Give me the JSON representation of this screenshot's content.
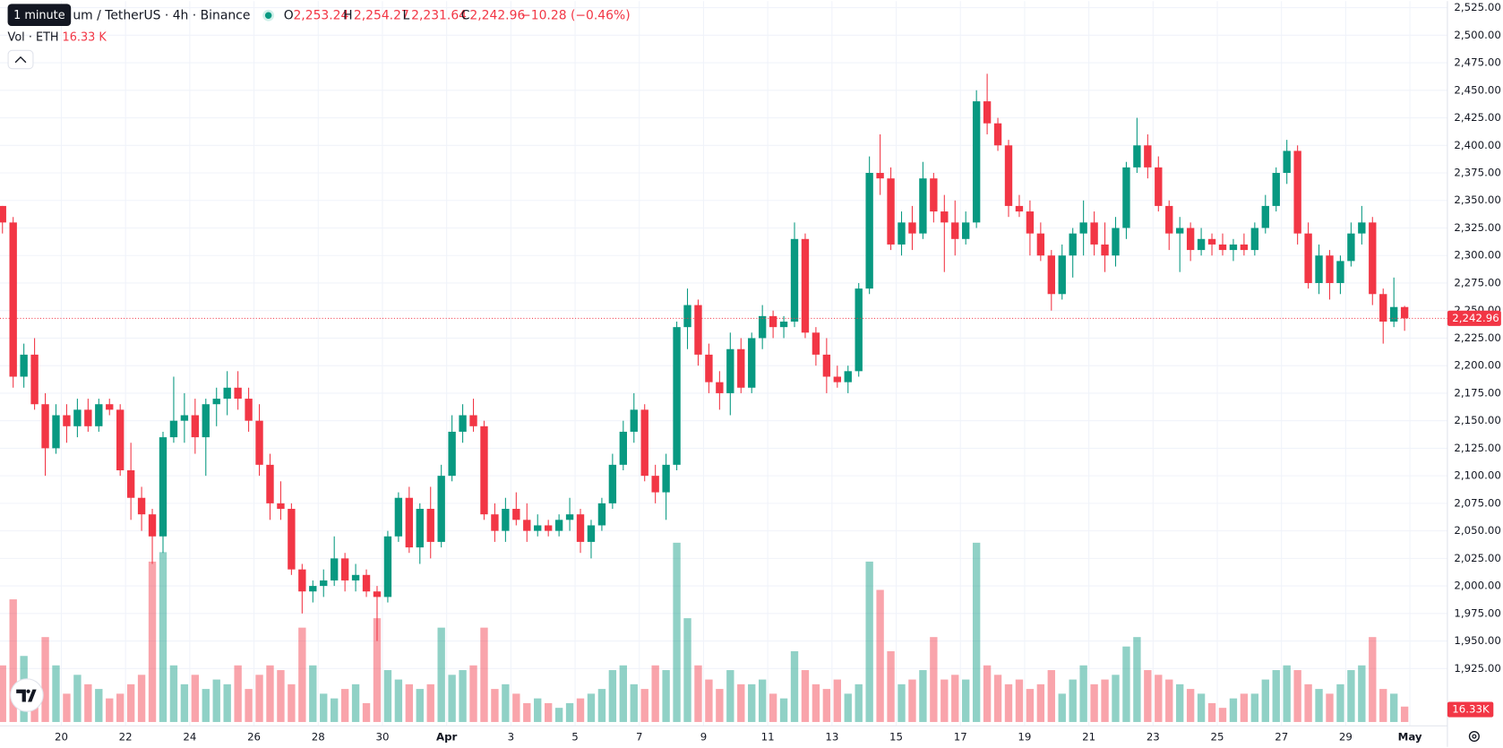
{
  "header": {
    "tooltip": "1 minute",
    "symbol": "um / TetherUS · 4h · Binance",
    "o": "O",
    "open": "2,253.24",
    "h": "H",
    "high": "2,254.27",
    "l": "L",
    "low": "2,231.64",
    "c": "C",
    "close": "2,242.96",
    "change": "−10.28 (−0.46%)",
    "vol_title": "Vol · ETH",
    "vol_value": "16.33 K"
  },
  "chart_data": {
    "type": "candlestick",
    "up_color": "#089981",
    "down_color": "#f23645",
    "grid": true,
    "open": [
      2345,
      2330,
      2190,
      2210,
      2165,
      2125,
      2155,
      2145,
      2160,
      2145,
      2165,
      2160,
      2105,
      2080,
      2065,
      2045,
      2135,
      2150,
      2155,
      2135,
      2165,
      2170,
      2180,
      2170,
      2150,
      2110,
      2075,
      2070,
      2015,
      1995,
      2000,
      2005,
      2025,
      2005,
      2010,
      1995,
      1990,
      2045,
      2080,
      2035,
      2070,
      2040,
      2100,
      2140,
      2155,
      2145,
      2065,
      2050,
      2070,
      2060,
      2050,
      2055,
      2050,
      2060,
      2065,
      2040,
      2055,
      2075,
      2110,
      2140,
      2160,
      2100,
      2085,
      2110,
      2235,
      2255,
      2210,
      2185,
      2175,
      2215,
      2180,
      2225,
      2245,
      2235,
      2240,
      2315,
      2230,
      2210,
      2190,
      2185,
      2195,
      2270,
      2375,
      2370,
      2310,
      2330,
      2320,
      2370,
      2340,
      2330,
      2315,
      2330,
      2440,
      2420,
      2400,
      2345,
      2340,
      2320,
      2300,
      2265,
      2300,
      2320,
      2330,
      2310,
      2300,
      2325,
      2380,
      2400,
      2380,
      2345,
      2320,
      2325,
      2305,
      2315,
      2310,
      2305,
      2310,
      2305,
      2325,
      2345,
      2375,
      2395,
      2320,
      2275,
      2300,
      2275,
      2295,
      2320,
      2330,
      2265,
      2240,
      2253.24
    ],
    "high": [
      2345,
      2335,
      2220,
      2225,
      2175,
      2165,
      2165,
      2170,
      2170,
      2170,
      2170,
      2165,
      2130,
      2090,
      2070,
      2140,
      2190,
      2175,
      2170,
      2170,
      2180,
      2195,
      2195,
      2180,
      2165,
      2120,
      2095,
      2075,
      2020,
      2005,
      2015,
      2045,
      2030,
      2020,
      2015,
      2000,
      2050,
      2085,
      2090,
      2075,
      2090,
      2110,
      2155,
      2165,
      2170,
      2150,
      2075,
      2080,
      2085,
      2075,
      2065,
      2060,
      2065,
      2080,
      2070,
      2060,
      2080,
      2120,
      2150,
      2175,
      2165,
      2110,
      2120,
      2240,
      2270,
      2260,
      2220,
      2195,
      2230,
      2225,
      2230,
      2255,
      2250,
      2245,
      2330,
      2320,
      2235,
      2225,
      2200,
      2200,
      2275,
      2390,
      2410,
      2380,
      2340,
      2345,
      2385,
      2375,
      2355,
      2350,
      2340,
      2450,
      2465,
      2425,
      2405,
      2355,
      2350,
      2330,
      2305,
      2310,
      2325,
      2350,
      2340,
      2330,
      2335,
      2385,
      2425,
      2410,
      2390,
      2350,
      2335,
      2330,
      2325,
      2320,
      2320,
      2315,
      2320,
      2330,
      2355,
      2380,
      2405,
      2400,
      2330,
      2310,
      2305,
      2300,
      2330,
      2345,
      2335,
      2270,
      2280,
      2254.27
    ],
    "low": [
      2320,
      2180,
      2180,
      2160,
      2100,
      2120,
      2130,
      2135,
      2140,
      2140,
      2155,
      2100,
      2060,
      2050,
      2020,
      2030,
      2130,
      2130,
      2120,
      2100,
      2145,
      2155,
      2160,
      2140,
      2100,
      2060,
      2060,
      2010,
      1975,
      1985,
      1990,
      2000,
      1995,
      1995,
      1990,
      1950,
      1985,
      2040,
      2030,
      2020,
      2025,
      2035,
      2095,
      2130,
      2140,
      2060,
      2040,
      2040,
      2055,
      2040,
      2045,
      2045,
      2045,
      2050,
      2030,
      2025,
      2050,
      2070,
      2105,
      2130,
      2095,
      2075,
      2060,
      2105,
      2215,
      2200,
      2175,
      2160,
      2155,
      2175,
      2175,
      2215,
      2225,
      2225,
      2235,
      2225,
      2200,
      2175,
      2180,
      2175,
      2190,
      2265,
      2355,
      2305,
      2300,
      2305,
      2315,
      2330,
      2285,
      2300,
      2310,
      2325,
      2410,
      2395,
      2335,
      2335,
      2300,
      2295,
      2250,
      2260,
      2280,
      2300,
      2300,
      2285,
      2290,
      2315,
      2375,
      2370,
      2340,
      2305,
      2285,
      2295,
      2300,
      2300,
      2300,
      2295,
      2300,
      2300,
      2320,
      2340,
      2365,
      2310,
      2270,
      2265,
      2260,
      2265,
      2290,
      2310,
      2255,
      2220,
      2235,
      2231.64
    ],
    "close": [
      2330,
      2190,
      2210,
      2165,
      2125,
      2155,
      2145,
      2160,
      2145,
      2165,
      2160,
      2105,
      2080,
      2065,
      2045,
      2135,
      2150,
      2155,
      2135,
      2165,
      2170,
      2180,
      2170,
      2150,
      2110,
      2075,
      2070,
      2015,
      1995,
      2000,
      2005,
      2025,
      2005,
      2010,
      1995,
      1990,
      2045,
      2080,
      2035,
      2070,
      2040,
      2100,
      2140,
      2155,
      2145,
      2065,
      2050,
      2070,
      2060,
      2050,
      2055,
      2050,
      2060,
      2065,
      2040,
      2055,
      2075,
      2110,
      2140,
      2160,
      2100,
      2085,
      2110,
      2235,
      2255,
      2210,
      2185,
      2175,
      2215,
      2180,
      2225,
      2245,
      2235,
      2240,
      2315,
      2230,
      2210,
      2190,
      2185,
      2195,
      2270,
      2375,
      2370,
      2310,
      2330,
      2320,
      2370,
      2340,
      2330,
      2315,
      2330,
      2440,
      2420,
      2400,
      2345,
      2340,
      2320,
      2300,
      2265,
      2300,
      2320,
      2330,
      2310,
      2300,
      2325,
      2380,
      2400,
      2380,
      2345,
      2320,
      2325,
      2305,
      2315,
      2310,
      2305,
      2310,
      2305,
      2325,
      2345,
      2375,
      2395,
      2320,
      2275,
      2300,
      2275,
      2295,
      2320,
      2330,
      2265,
      2240,
      2253.24,
      2242.96
    ],
    "volume": [
      60,
      130,
      70,
      40,
      90,
      60,
      30,
      50,
      40,
      35,
      25,
      30,
      40,
      50,
      170,
      180,
      60,
      40,
      50,
      35,
      45,
      40,
      60,
      35,
      50,
      60,
      55,
      40,
      100,
      60,
      30,
      25,
      35,
      40,
      20,
      110,
      55,
      45,
      40,
      35,
      40,
      100,
      50,
      55,
      60,
      100,
      35,
      40,
      30,
      20,
      25,
      20,
      15,
      20,
      25,
      30,
      35,
      55,
      60,
      40,
      35,
      60,
      55,
      190,
      110,
      60,
      45,
      35,
      55,
      40,
      40,
      45,
      30,
      25,
      75,
      55,
      40,
      35,
      45,
      30,
      40,
      170,
      140,
      75,
      40,
      45,
      55,
      90,
      45,
      50,
      45,
      190,
      60,
      50,
      40,
      45,
      35,
      40,
      55,
      30,
      45,
      60,
      40,
      45,
      50,
      80,
      90,
      55,
      50,
      45,
      40,
      35,
      30,
      20,
      15,
      25,
      30,
      30,
      45,
      55,
      60,
      55,
      40,
      35,
      30,
      40,
      55,
      60,
      90,
      35,
      30,
      16.33
    ],
    "last_volume_label": "16.33K",
    "volume_lim": [
      0,
      190
    ],
    "last_price": {
      "value": 2242.96,
      "label": "2,242.96"
    },
    "xlim": [
      -0.23,
      135
    ],
    "xticks": [
      {
        "value": 5.5,
        "label": "20"
      },
      {
        "value": 11.5,
        "label": "22"
      },
      {
        "value": 17.5,
        "label": "24"
      },
      {
        "value": 23.5,
        "label": "26"
      },
      {
        "value": 29.5,
        "label": "28"
      },
      {
        "value": 35.5,
        "label": "30"
      },
      {
        "value": 41.5,
        "label": "Apr"
      },
      {
        "value": 47.5,
        "label": "3"
      },
      {
        "value": 53.5,
        "label": "5"
      },
      {
        "value": 59.5,
        "label": "7"
      },
      {
        "value": 65.5,
        "label": "9"
      },
      {
        "value": 71.5,
        "label": "11"
      },
      {
        "value": 77.5,
        "label": "13"
      },
      {
        "value": 83.5,
        "label": "15"
      },
      {
        "value": 89.5,
        "label": "17"
      },
      {
        "value": 95.5,
        "label": "19"
      },
      {
        "value": 101.5,
        "label": "21"
      },
      {
        "value": 107.5,
        "label": "23"
      },
      {
        "value": 113.5,
        "label": "25"
      },
      {
        "value": 119.5,
        "label": "27"
      },
      {
        "value": 125.5,
        "label": "29"
      },
      {
        "value": 131.5,
        "label": "May"
      }
    ],
    "ylim": [
      1873.0,
      2531.0
    ],
    "yticks": [
      {
        "value": 2525,
        "label": "2,525.00"
      },
      {
        "value": 2500,
        "label": "2,500.00"
      },
      {
        "value": 2475,
        "label": "2,475.00"
      },
      {
        "value": 2450,
        "label": "2,450.00"
      },
      {
        "value": 2425,
        "label": "2,425.00"
      },
      {
        "value": 2400,
        "label": "2,400.00"
      },
      {
        "value": 2375,
        "label": "2,375.00"
      },
      {
        "value": 2350,
        "label": "2,350.00"
      },
      {
        "value": 2325,
        "label": "2,325.00"
      },
      {
        "value": 2300,
        "label": "2,300.00"
      },
      {
        "value": 2275,
        "label": "2,275.00"
      },
      {
        "value": 2250,
        "label": "2,250.00"
      },
      {
        "value": 2225,
        "label": "2,225.00"
      },
      {
        "value": 2200,
        "label": "2,200.00"
      },
      {
        "value": 2175,
        "label": "2,175.00"
      },
      {
        "value": 2150,
        "label": "2,150.00"
      },
      {
        "value": 2125,
        "label": "2,125.00"
      },
      {
        "value": 2100,
        "label": "2,100.00"
      },
      {
        "value": 2075,
        "label": "2,075.00"
      },
      {
        "value": 2050,
        "label": "2,050.00"
      },
      {
        "value": 2025,
        "label": "2,025.00"
      },
      {
        "value": 2000,
        "label": "2,000.00"
      },
      {
        "value": 1975,
        "label": "1,975.00"
      },
      {
        "value": 1950,
        "label": "1,950.00"
      },
      {
        "value": 1925,
        "label": "1,925.00"
      }
    ]
  }
}
